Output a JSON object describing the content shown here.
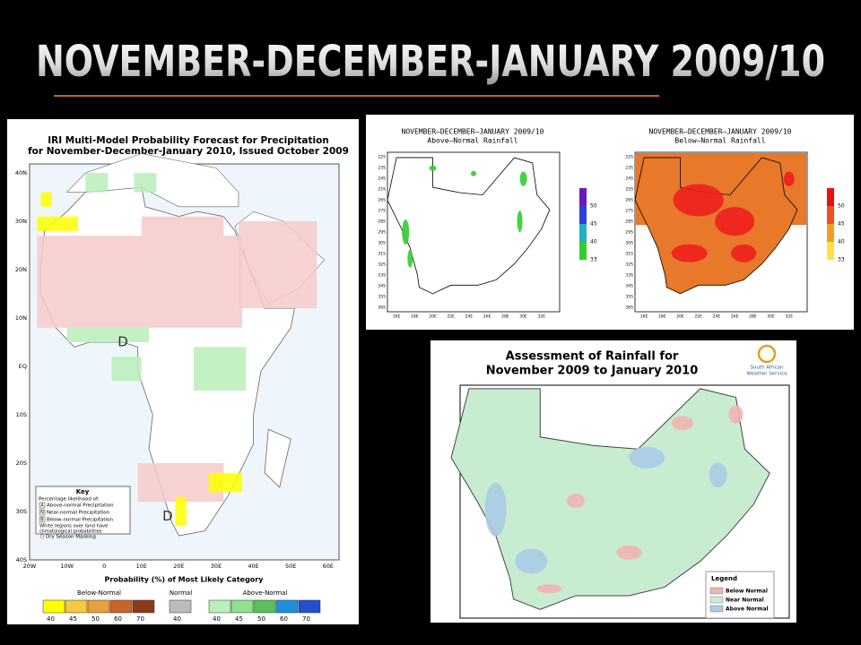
{
  "title": "NOVEMBER-DECEMBER-JANUARY 2009/10",
  "iri_map": {
    "title_lines": [
      "IRI Multi-Model Probability Forecast for Precipitation",
      "for November-December-January 2010, Issued October 2009"
    ],
    "lat_labels": [
      "40N",
      "30N",
      "20N",
      "10N",
      "EQ",
      "10S",
      "20S",
      "30S",
      "40S"
    ],
    "lon_labels": [
      "20W",
      "10W",
      "0",
      "10E",
      "20E",
      "30E",
      "40E",
      "50E",
      "60E"
    ],
    "map_letters": [
      "D",
      "D"
    ],
    "key": {
      "title": "Key",
      "subtitle": "Percentage likelihood of:",
      "items": [
        {
          "letter": "A",
          "text": "Above-normal Precipitation"
        },
        {
          "letter": "N",
          "text": "Near-normal Precipitation"
        },
        {
          "letter": "B",
          "text": "Below-normal Precipitation"
        }
      ],
      "note_lines": [
        "White regions over land have",
        "climatological probabilities"
      ],
      "dry": {
        "letter": "D",
        "text": "Dry Season Masking"
      }
    },
    "scale": {
      "title": "Probability (%) of Most Likely Category",
      "groups": [
        {
          "label": "Below-Normal",
          "levels": [
            "40",
            "45",
            "50",
            "60",
            "70"
          ]
        },
        {
          "label": "Normal",
          "levels": [
            "40"
          ]
        },
        {
          "label": "Above-Normal",
          "levels": [
            "40",
            "45",
            "50",
            "60",
            "70"
          ]
        }
      ]
    }
  },
  "rainfall_maps": [
    {
      "title": "NOVEMBER—DECEMBER—JANUARY 2009/10",
      "subtitle": "Above—Normal Rainfall",
      "colorbar": [
        "50",
        "45",
        "40",
        "33"
      ],
      "lat_labels": [
        "22S",
        "23S",
        "24S",
        "25S",
        "26S",
        "27S",
        "28S",
        "29S",
        "30S",
        "31S",
        "32S",
        "33S",
        "34S",
        "35S",
        "36S"
      ],
      "lon_labels": [
        "16E",
        "18E",
        "20E",
        "22E",
        "24E",
        "26E",
        "28E",
        "30E",
        "32E"
      ]
    },
    {
      "title": "NOVEMBER—DECEMBER—JANUARY 2009/10",
      "subtitle": "Below—Normal Rainfall",
      "colorbar": [
        "50",
        "45",
        "40",
        "33"
      ],
      "lat_labels": [
        "22S",
        "23S",
        "24S",
        "25S",
        "26S",
        "27S",
        "28S",
        "29S",
        "30S",
        "31S",
        "32S",
        "33S",
        "34S",
        "35S",
        "36S"
      ],
      "lon_labels": [
        "16E",
        "18E",
        "20E",
        "22E",
        "24E",
        "26E",
        "28E",
        "30E",
        "32E"
      ]
    }
  ],
  "assessment": {
    "title_lines": [
      "Assessment of Rainfall for",
      "November 2009 to January 2010"
    ],
    "logo_lines": [
      "South African",
      "Weather Service"
    ],
    "legend": {
      "title": "Legend",
      "items": [
        "Below Normal",
        "Near Normal",
        "Above Normal"
      ]
    }
  }
}
